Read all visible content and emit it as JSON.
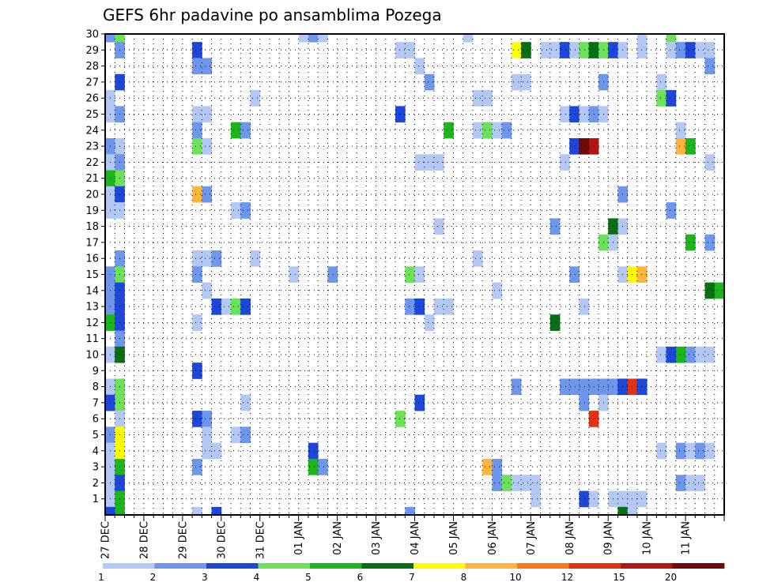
{
  "chart_data": {
    "type": "heatmap",
    "title": "GEFS 6hr padavine po ansamblima Pozega",
    "x_tick_labels": [
      "27 DEC",
      "28 DEC",
      "29 DEC",
      "30 DEC",
      "31 DEC",
      "01 JAN",
      "02 JAN",
      "03 JAN",
      "04 JAN",
      "05 JAN",
      "06 JAN",
      "07 JAN",
      "08 JAN",
      "09 JAN",
      "10 JAN",
      "11 JAN"
    ],
    "x_step": "6h",
    "y_tick_labels": [
      "1",
      "2",
      "3",
      "4",
      "5",
      "6",
      "7",
      "8",
      "9",
      "10",
      "11",
      "12",
      "13",
      "14",
      "15",
      "16",
      "17",
      "18",
      "19",
      "20",
      "21",
      "22",
      "23",
      "24",
      "25",
      "26",
      "27",
      "28",
      "29",
      "30"
    ],
    "grid": true,
    "colorbar": {
      "labels": [
        "1",
        "2",
        "3",
        "4",
        "5",
        "6",
        "7",
        "8",
        "10",
        "12",
        "15",
        "20"
      ],
      "colors": [
        "#b4c8f5",
        "#6e96eb",
        "#1e46d7",
        "#6ee15a",
        "#1eb41e",
        "#0a6e14",
        "#ffff00",
        "#ffb43c",
        "#ff7814",
        "#e13214",
        "#b41414",
        "#6e0a0a"
      ]
    },
    "cells": [
      [
        0,
        30,
        2
      ],
      [
        1,
        30,
        4
      ],
      [
        20,
        30,
        1
      ],
      [
        21,
        30,
        2
      ],
      [
        22,
        30,
        1
      ],
      [
        37,
        30,
        1
      ],
      [
        55,
        30,
        1
      ],
      [
        58,
        30,
        4
      ],
      [
        1,
        29,
        2
      ],
      [
        9,
        29,
        3
      ],
      [
        30,
        29,
        1
      ],
      [
        31,
        29,
        1
      ],
      [
        42,
        29,
        7
      ],
      [
        43,
        29,
        6
      ],
      [
        45,
        29,
        1
      ],
      [
        46,
        29,
        1
      ],
      [
        47,
        29,
        3
      ],
      [
        48,
        29,
        1
      ],
      [
        49,
        29,
        4
      ],
      [
        50,
        29,
        6
      ],
      [
        51,
        29,
        4
      ],
      [
        52,
        29,
        3
      ],
      [
        53,
        29,
        1
      ],
      [
        55,
        29,
        1
      ],
      [
        58,
        29,
        1
      ],
      [
        59,
        29,
        2
      ],
      [
        60,
        29,
        3
      ],
      [
        61,
        29,
        1
      ],
      [
        62,
        29,
        1
      ],
      [
        9,
        28,
        2
      ],
      [
        10,
        28,
        2
      ],
      [
        32,
        28,
        1
      ],
      [
        62,
        28,
        2
      ],
      [
        1,
        27,
        3
      ],
      [
        33,
        27,
        2
      ],
      [
        42,
        27,
        1
      ],
      [
        43,
        27,
        1
      ],
      [
        51,
        27,
        2
      ],
      [
        57,
        27,
        1
      ],
      [
        0,
        26,
        1
      ],
      [
        15,
        26,
        1
      ],
      [
        38,
        26,
        1
      ],
      [
        39,
        26,
        1
      ],
      [
        57,
        26,
        4
      ],
      [
        58,
        26,
        3
      ],
      [
        0,
        25,
        1
      ],
      [
        1,
        25,
        2
      ],
      [
        9,
        25,
        1
      ],
      [
        10,
        25,
        1
      ],
      [
        30,
        25,
        3
      ],
      [
        47,
        25,
        1
      ],
      [
        48,
        25,
        3
      ],
      [
        49,
        25,
        1
      ],
      [
        50,
        25,
        2
      ],
      [
        51,
        25,
        1
      ],
      [
        9,
        24,
        2
      ],
      [
        13,
        24,
        5
      ],
      [
        14,
        24,
        2
      ],
      [
        35,
        24,
        5
      ],
      [
        38,
        24,
        1
      ],
      [
        39,
        24,
        4
      ],
      [
        40,
        24,
        1
      ],
      [
        41,
        24,
        2
      ],
      [
        59,
        24,
        1
      ],
      [
        0,
        23,
        2
      ],
      [
        1,
        23,
        1
      ],
      [
        9,
        23,
        4
      ],
      [
        10,
        23,
        1
      ],
      [
        48,
        23,
        3
      ],
      [
        49,
        23,
        12
      ],
      [
        50,
        23,
        11
      ],
      [
        59,
        23,
        8
      ],
      [
        60,
        23,
        5
      ],
      [
        0,
        22,
        1
      ],
      [
        1,
        22,
        2
      ],
      [
        32,
        22,
        1
      ],
      [
        33,
        22,
        1
      ],
      [
        34,
        22,
        1
      ],
      [
        47,
        22,
        1
      ],
      [
        62,
        22,
        1
      ],
      [
        0,
        21,
        5
      ],
      [
        1,
        21,
        4
      ],
      [
        0,
        20,
        1
      ],
      [
        1,
        20,
        3
      ],
      [
        9,
        20,
        8
      ],
      [
        10,
        20,
        2
      ],
      [
        53,
        20,
        2
      ],
      [
        0,
        19,
        1
      ],
      [
        1,
        19,
        1
      ],
      [
        13,
        19,
        1
      ],
      [
        14,
        19,
        2
      ],
      [
        58,
        19,
        2
      ],
      [
        34,
        18,
        1
      ],
      [
        46,
        18,
        2
      ],
      [
        52,
        18,
        6
      ],
      [
        53,
        18,
        1
      ],
      [
        51,
        17,
        4
      ],
      [
        52,
        17,
        1
      ],
      [
        60,
        17,
        5
      ],
      [
        62,
        17,
        2
      ],
      [
        1,
        16,
        2
      ],
      [
        9,
        16,
        1
      ],
      [
        10,
        16,
        1
      ],
      [
        11,
        16,
        2
      ],
      [
        15,
        16,
        1
      ],
      [
        38,
        16,
        1
      ],
      [
        0,
        15,
        2
      ],
      [
        1,
        15,
        4
      ],
      [
        9,
        15,
        2
      ],
      [
        19,
        15,
        1
      ],
      [
        23,
        15,
        2
      ],
      [
        31,
        15,
        4
      ],
      [
        32,
        15,
        1
      ],
      [
        48,
        15,
        2
      ],
      [
        53,
        15,
        1
      ],
      [
        54,
        15,
        7
      ],
      [
        55,
        15,
        8
      ],
      [
        0,
        14,
        2
      ],
      [
        1,
        14,
        3
      ],
      [
        10,
        14,
        1
      ],
      [
        40,
        14,
        1
      ],
      [
        62,
        14,
        6
      ],
      [
        63,
        14,
        5
      ],
      [
        0,
        13,
        2
      ],
      [
        1,
        13,
        3
      ],
      [
        11,
        13,
        3
      ],
      [
        12,
        13,
        1
      ],
      [
        13,
        13,
        4
      ],
      [
        14,
        13,
        3
      ],
      [
        31,
        13,
        2
      ],
      [
        32,
        13,
        3
      ],
      [
        34,
        13,
        1
      ],
      [
        35,
        13,
        1
      ],
      [
        49,
        13,
        1
      ],
      [
        0,
        12,
        5
      ],
      [
        1,
        12,
        3
      ],
      [
        9,
        12,
        1
      ],
      [
        33,
        12,
        1
      ],
      [
        46,
        12,
        6
      ],
      [
        1,
        11,
        2
      ],
      [
        0,
        10,
        1
      ],
      [
        1,
        10,
        6
      ],
      [
        57,
        10,
        1
      ],
      [
        58,
        10,
        3
      ],
      [
        59,
        10,
        5
      ],
      [
        60,
        10,
        2
      ],
      [
        61,
        10,
        1
      ],
      [
        62,
        10,
        1
      ],
      [
        9,
        9,
        3
      ],
      [
        0,
        8,
        1
      ],
      [
        1,
        8,
        4
      ],
      [
        42,
        8,
        2
      ],
      [
        47,
        8,
        2
      ],
      [
        48,
        8,
        2
      ],
      [
        49,
        8,
        2
      ],
      [
        50,
        8,
        2
      ],
      [
        51,
        8,
        2
      ],
      [
        52,
        8,
        2
      ],
      [
        53,
        8,
        3
      ],
      [
        54,
        8,
        10
      ],
      [
        55,
        8,
        3
      ],
      [
        0,
        7,
        3
      ],
      [
        1,
        7,
        4
      ],
      [
        14,
        7,
        1
      ],
      [
        32,
        7,
        3
      ],
      [
        49,
        7,
        2
      ],
      [
        51,
        7,
        1
      ],
      [
        1,
        6,
        1
      ],
      [
        9,
        6,
        3
      ],
      [
        10,
        6,
        2
      ],
      [
        30,
        6,
        4
      ],
      [
        50,
        6,
        10
      ],
      [
        0,
        5,
        2
      ],
      [
        1,
        5,
        7
      ],
      [
        10,
        5,
        1
      ],
      [
        13,
        5,
        1
      ],
      [
        14,
        5,
        2
      ],
      [
        0,
        4,
        1
      ],
      [
        1,
        4,
        7
      ],
      [
        10,
        4,
        1
      ],
      [
        11,
        4,
        1
      ],
      [
        21,
        4,
        3
      ],
      [
        57,
        4,
        1
      ],
      [
        59,
        4,
        2
      ],
      [
        60,
        4,
        1
      ],
      [
        61,
        4,
        2
      ],
      [
        62,
        4,
        1
      ],
      [
        0,
        3,
        1
      ],
      [
        1,
        3,
        5
      ],
      [
        9,
        3,
        2
      ],
      [
        21,
        3,
        5
      ],
      [
        22,
        3,
        2
      ],
      [
        39,
        3,
        8
      ],
      [
        40,
        3,
        2
      ],
      [
        0,
        2,
        1
      ],
      [
        1,
        2,
        3
      ],
      [
        40,
        2,
        2
      ],
      [
        41,
        2,
        4
      ],
      [
        42,
        2,
        1
      ],
      [
        43,
        2,
        1
      ],
      [
        44,
        2,
        1
      ],
      [
        59,
        2,
        2
      ],
      [
        60,
        2,
        1
      ],
      [
        61,
        2,
        1
      ],
      [
        0,
        1,
        1
      ],
      [
        1,
        1,
        5
      ],
      [
        44,
        1,
        1
      ],
      [
        49,
        1,
        3
      ],
      [
        50,
        1,
        1
      ],
      [
        52,
        1,
        1
      ],
      [
        53,
        1,
        1
      ],
      [
        54,
        1,
        1
      ],
      [
        55,
        1,
        1
      ],
      [
        0,
        0,
        3
      ],
      [
        1,
        0,
        5
      ],
      [
        9,
        0,
        1
      ],
      [
        11,
        0,
        3
      ],
      [
        31,
        0,
        2
      ],
      [
        53,
        0,
        6
      ],
      [
        54,
        0,
        1
      ]
    ]
  }
}
